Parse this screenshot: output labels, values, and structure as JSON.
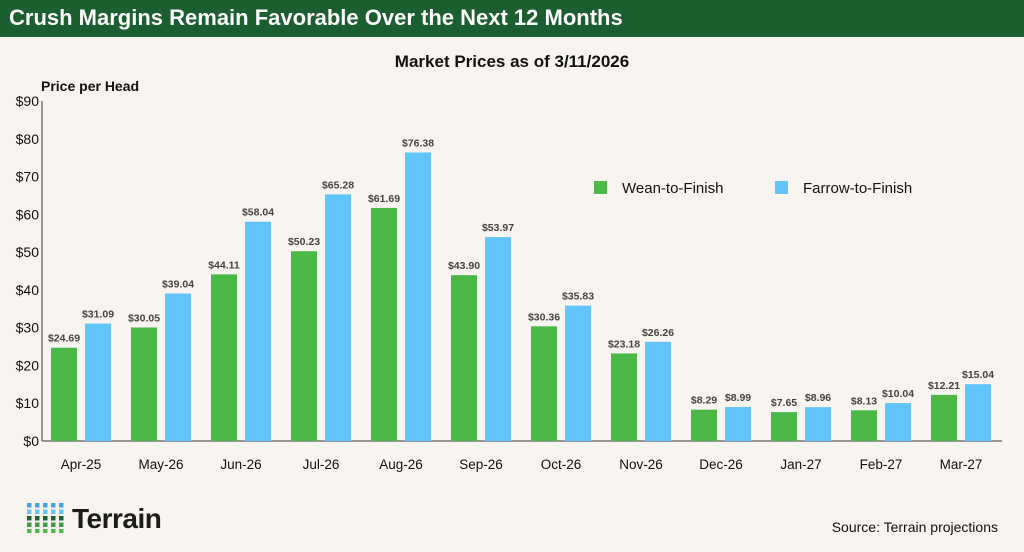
{
  "header": {
    "title": "Crush Margins Remain Favorable Over the Next 12 Months"
  },
  "chart_data": {
    "type": "bar",
    "title": "Market Prices as of 3/11/2026",
    "ylabel": "Price per Head",
    "xlabel": "",
    "ylim": [
      0,
      90
    ],
    "yticks": [
      "$0",
      "$10",
      "$20",
      "$30",
      "$40",
      "$50",
      "$60",
      "$70",
      "$80",
      "$90"
    ],
    "grid": false,
    "legend": "top-right",
    "categories": [
      "Apr-25",
      "May-26",
      "Jun-26",
      "Jul-26",
      "Aug-26",
      "Sep-26",
      "Oct-26",
      "Nov-26",
      "Dec-26",
      "Jan-27",
      "Feb-27",
      "Mar-27"
    ],
    "series": [
      {
        "name": "Wean-to-Finish",
        "color": "#4bb847",
        "values": [
          24.69,
          30.05,
          44.11,
          50.23,
          61.69,
          43.9,
          30.36,
          23.18,
          8.29,
          7.65,
          8.13,
          12.21
        ]
      },
      {
        "name": "Farrow-to-Finish",
        "color": "#62c4fc",
        "values": [
          31.09,
          39.04,
          58.04,
          65.28,
          76.38,
          53.97,
          35.83,
          26.26,
          8.99,
          8.96,
          10.04,
          15.04
        ]
      }
    ]
  },
  "footer": {
    "source": "Source: Terrain projections",
    "logo_text": "Terrain"
  }
}
